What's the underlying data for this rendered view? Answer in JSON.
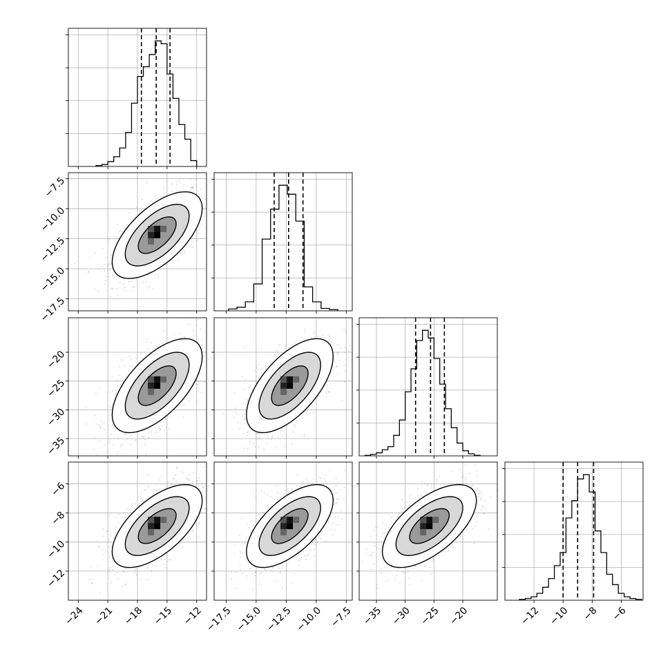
{
  "chart_data": {
    "type": "corner",
    "grid": true,
    "parameters": [
      {
        "range": [
          -25,
          -11
        ],
        "ticks": [
          -24,
          -21,
          -18,
          -15,
          -12
        ],
        "tick_labels": [
          "−24",
          "−21",
          "−18",
          "−15",
          "−12"
        ],
        "quantiles": [
          -17.6,
          -16.1,
          -14.7
        ],
        "hist": {
          "bins": [
            -22.2,
            -21.6,
            -21.0,
            -20.4,
            -19.8,
            -19.2,
            -18.6,
            -18.0,
            -17.4,
            -16.8,
            -16.2,
            -15.6,
            -15.0,
            -14.4,
            -13.8,
            -13.2,
            -12.6,
            -12.0
          ],
          "counts": [
            2,
            4,
            10,
            20,
            38,
            70,
            130,
            185,
            205,
            230,
            258,
            252,
            190,
            140,
            86,
            56,
            12
          ]
        }
      },
      {
        "range": [
          -18.5,
          -7
        ],
        "ticks": [
          -17.5,
          -15.0,
          -12.5,
          -10.0,
          -7.5
        ],
        "tick_labels": [
          "−17.5",
          "−15.0",
          "−12.5",
          "−10.0",
          "−7.5"
        ],
        "quantiles": [
          -13.5,
          -12.3,
          -11.1
        ],
        "hist": {
          "bins": [
            -17.3,
            -16.6,
            -15.9,
            -15.2,
            -14.5,
            -13.8,
            -13.1,
            -12.4,
            -11.7,
            -11.0,
            -10.3,
            -9.6,
            -8.9,
            -8.2
          ],
          "counts": [
            3,
            6,
            15,
            45,
            120,
            170,
            210,
            195,
            150,
            40,
            15,
            4,
            2
          ]
        }
      },
      {
        "range": [
          -38,
          -14
        ],
        "ticks": [
          -35,
          -30,
          -25,
          -20
        ],
        "tick_labels": [
          "−35",
          "−30",
          "−25",
          "−20"
        ],
        "quantiles": [
          -28.2,
          -25.6,
          -23.2
        ],
        "hist": {
          "bins": [
            -37.0,
            -36.0,
            -35.0,
            -34.0,
            -33.0,
            -32.0,
            -31.0,
            -30.0,
            -29.0,
            -28.0,
            -27.0,
            -26.0,
            -25.0,
            -24.0,
            -23.0,
            -22.0,
            -21.0,
            -20.0,
            -19.0,
            -18.0,
            -17.0
          ],
          "counts": [
            1,
            3,
            6,
            12,
            18,
            40,
            70,
            125,
            170,
            225,
            245,
            230,
            190,
            140,
            92,
            55,
            25,
            10,
            4,
            1
          ]
        }
      },
      {
        "range": [
          -14,
          -4.5
        ],
        "ticks": [
          -12,
          -10,
          -8,
          -6
        ],
        "tick_labels": [
          "−12",
          "−10",
          "−8",
          "−6"
        ],
        "quantiles": [
          -10.0,
          -9.0,
          -7.9
        ],
        "hist": {
          "bins": [
            -13.0,
            -12.6,
            -12.2,
            -11.8,
            -11.4,
            -11.0,
            -10.6,
            -10.2,
            -9.8,
            -9.4,
            -9.0,
            -8.6,
            -8.2,
            -7.8,
            -7.4,
            -7.0,
            -6.6,
            -6.2,
            -5.8,
            -5.4,
            -5.0,
            -4.6
          ],
          "counts": [
            1,
            2,
            4,
            8,
            15,
            25,
            40,
            55,
            95,
            115,
            140,
            145,
            125,
            80,
            55,
            30,
            18,
            8,
            4,
            2,
            1
          ]
        }
      }
    ],
    "y_axes": [
      {
        "row": 1,
        "range": [
          -18.5,
          -7
        ],
        "ticks": [
          -17.5,
          -15.0,
          -12.5,
          -10.0,
          -7.5
        ],
        "tick_labels": [
          "−17.5",
          "−15.0",
          "−12.5",
          "−10.0",
          "−7.5"
        ]
      },
      {
        "row": 2,
        "range": [
          -38,
          -14
        ],
        "ticks": [
          -35,
          -30,
          -25,
          -20
        ],
        "tick_labels": [
          "−35",
          "−30",
          "−25",
          "−20"
        ]
      },
      {
        "row": 3,
        "range": [
          -14,
          -4.5
        ],
        "ticks": [
          -12,
          -10,
          -8,
          -6
        ],
        "tick_labels": [
          "−12",
          "−10",
          "−8",
          "−6"
        ]
      }
    ],
    "pairs": [
      {
        "row": 1,
        "col": 0,
        "center": [
          -16.0,
          -12.2
        ],
        "spread": [
          2.4,
          1.9
        ],
        "corr": 0.62
      },
      {
        "row": 2,
        "col": 0,
        "center": [
          -16.0,
          -25.8
        ],
        "spread": [
          2.4,
          4.3
        ],
        "corr": 0.62
      },
      {
        "row": 2,
        "col": 1,
        "center": [
          -12.2,
          -25.8
        ],
        "spread": [
          1.9,
          4.3
        ],
        "corr": 0.62
      },
      {
        "row": 3,
        "col": 0,
        "center": [
          -16.0,
          -8.9
        ],
        "spread": [
          2.4,
          1.5
        ],
        "corr": 0.62
      },
      {
        "row": 3,
        "col": 1,
        "center": [
          -12.2,
          -8.9
        ],
        "spread": [
          1.9,
          1.5
        ],
        "corr": 0.62
      },
      {
        "row": 3,
        "col": 2,
        "center": [
          -25.8,
          -8.9
        ],
        "spread": [
          4.3,
          1.5
        ],
        "corr": 0.62
      }
    ],
    "contour_levels": [
      0.8,
      1.35,
      1.9
    ]
  },
  "colors": {
    "line": "#000000",
    "grid": "#b0b0b0",
    "frame": "#000000",
    "scatter": "#808080",
    "hist_fill": "none"
  }
}
